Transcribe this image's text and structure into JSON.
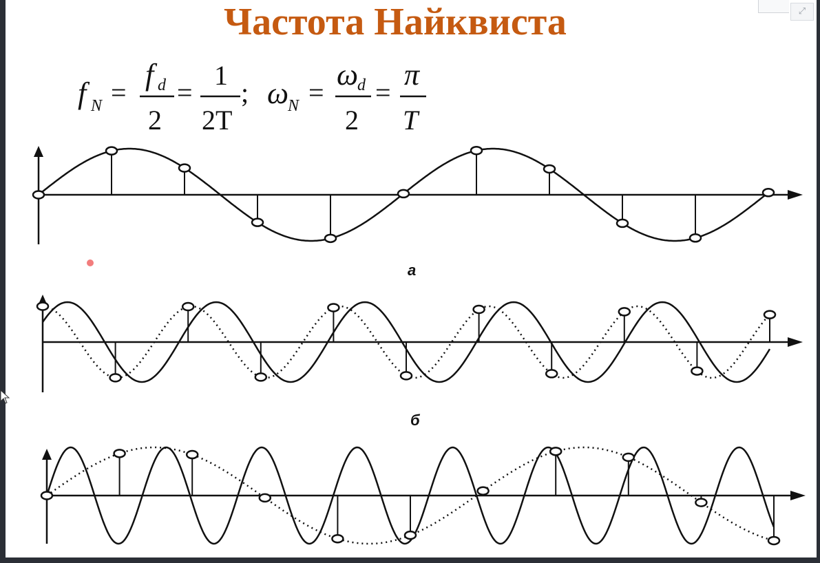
{
  "slide": {
    "title": "Частота Найквиста"
  },
  "formula": {
    "f_symbol": "f",
    "f_sub": "N",
    "eq1": "=",
    "fd_num": "f",
    "fd_num_sub": "d",
    "den_2a": "2",
    "eq2": "=",
    "num_1": "1",
    "den_2T": "2T",
    "semicolon": ";",
    "omega_symbol": "ω",
    "omega_sub": "N",
    "eq3": "=",
    "omega_d_num": "ω",
    "omega_d_sub": "d",
    "den_2b": "2",
    "eq4": "=",
    "pi": "π",
    "den_T": "T"
  },
  "panels": [
    {
      "label": "а"
    },
    {
      "label": "б"
    },
    {
      "label": ""
    }
  ],
  "controls": {
    "expand_glyph": "⤢"
  },
  "colors": {
    "title": "#c55a11",
    "curve": "#111111",
    "background": "#ffffff",
    "frame": "#2b2f36",
    "laser": "#f27d7d"
  }
}
